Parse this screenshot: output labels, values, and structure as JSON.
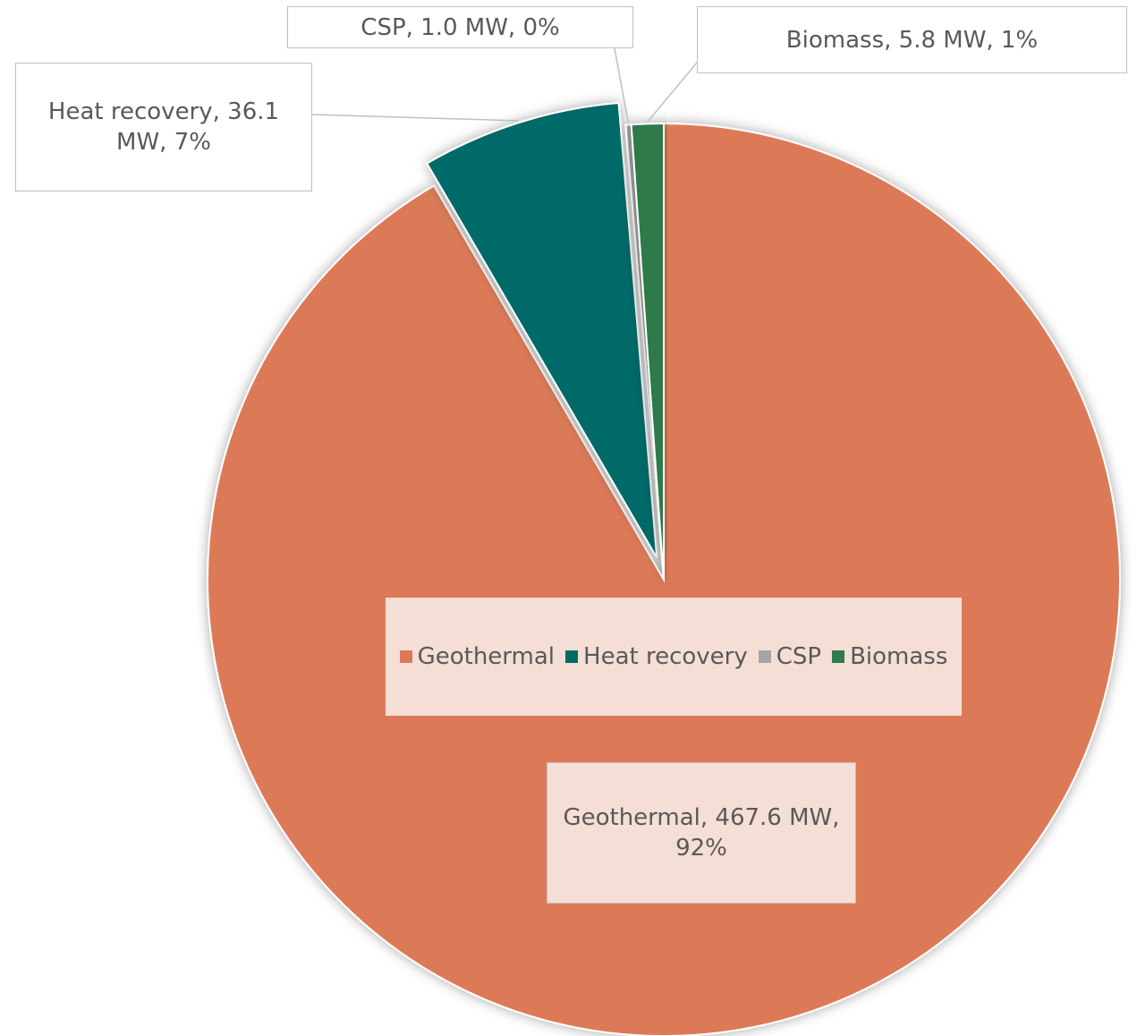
{
  "chart_data": {
    "type": "pie",
    "title": "",
    "unit": "MW",
    "categories": [
      "Geothermal",
      "Heat recovery",
      "CSP",
      "Biomass"
    ],
    "values": [
      467.6,
      36.1,
      1.0,
      5.8
    ],
    "percentages": [
      92,
      7,
      0,
      1
    ],
    "colors": [
      "#dc7a58",
      "#006b68",
      "#a5a5a5",
      "#2f7a4a"
    ],
    "exploded": [
      false,
      true,
      false,
      false
    ],
    "data_labels": [
      "Geothermal, 467.6 MW, 92%",
      "Heat recovery, 36.1 MW, 7%",
      "CSP, 1.0 MW, 0%",
      "Biomass, 5.8 MW, 1%"
    ],
    "legend": {
      "position": "overlay-center",
      "background": "#f5ded5",
      "items": [
        "Geothermal",
        "Heat recovery",
        "CSP",
        "Biomass"
      ]
    },
    "label_background": "#f5ded5"
  }
}
